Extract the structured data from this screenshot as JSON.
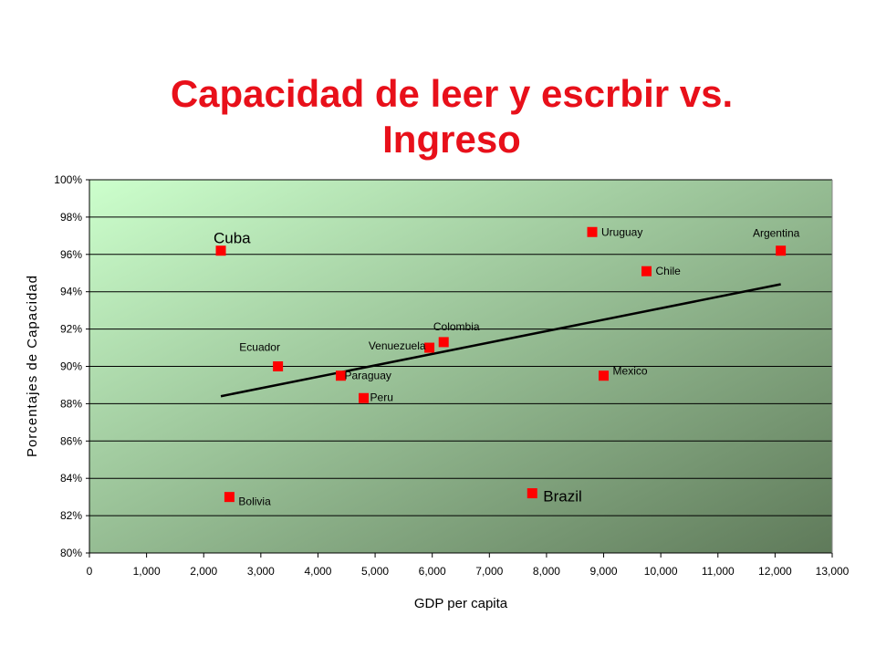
{
  "slide": {
    "title_line1": "Capacidad de leer y escrbir  vs.",
    "title_line2": "Ingreso"
  },
  "chart_data": {
    "type": "scatter",
    "title": "Capacidad de leer y escrbir  vs. Ingreso",
    "xlabel": "GDP per capita",
    "ylabel": "Porcentajes de Capacidad",
    "xlim": [
      0,
      13000
    ],
    "ylim": [
      80,
      100
    ],
    "x_ticks": [
      "0",
      "1,000",
      "2,000",
      "3,000",
      "4,000",
      "5,000",
      "6,000",
      "7,000",
      "8,000",
      "9,000",
      "10,000",
      "11,000",
      "12,000",
      "13,000"
    ],
    "y_ticks": [
      "80%",
      "82%",
      "84%",
      "86%",
      "88%",
      "90%",
      "92%",
      "94%",
      "96%",
      "98%",
      "100%"
    ],
    "grid": "horizontal",
    "series": [
      {
        "points": [
          {
            "label": "Cuba",
            "x": 2300,
            "y": 96.2
          },
          {
            "label": "Bolivia",
            "x": 2450,
            "y": 83.0
          },
          {
            "label": "Ecuador",
            "x": 3300,
            "y": 90.0
          },
          {
            "label": "Paraguay",
            "x": 4400,
            "y": 89.5
          },
          {
            "label": "Peru",
            "x": 4800,
            "y": 88.3
          },
          {
            "label": "Venuezuela",
            "x": 5950,
            "y": 91.0
          },
          {
            "label": "Colombia",
            "x": 6200,
            "y": 91.3
          },
          {
            "label": "Brazil",
            "x": 7750,
            "y": 83.2
          },
          {
            "label": "Uruguay",
            "x": 8800,
            "y": 97.2
          },
          {
            "label": "Mexico",
            "x": 9000,
            "y": 89.5
          },
          {
            "label": "Chile",
            "x": 9750,
            "y": 95.1
          },
          {
            "label": "Argentina",
            "x": 12100,
            "y": 96.2
          }
        ]
      }
    ],
    "trendline": {
      "x": [
        2300,
        12100
      ],
      "y": [
        88.4,
        94.4
      ]
    },
    "colors": {
      "marker": "#ff0000",
      "trendline": "#000000",
      "plot_bg_start": "#ccffcc",
      "plot_bg_end": "#5f7a5a"
    }
  }
}
